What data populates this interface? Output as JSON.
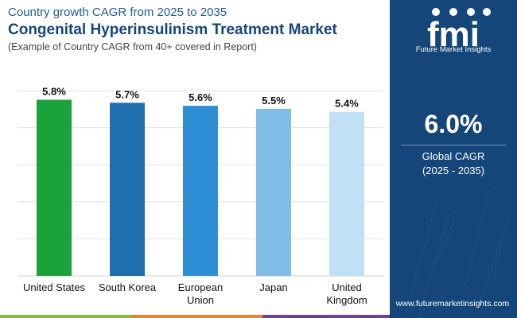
{
  "header": {
    "subtitle_top": "Country growth CAGR from 2025 to 2035",
    "title": "Congenital Hyperinsulinism Treatment Market",
    "note": "(Example of Country CAGR from 40+ covered in Report)"
  },
  "chart_data": {
    "type": "bar",
    "categories": [
      [
        "United States"
      ],
      [
        "South Korea"
      ],
      [
        "European",
        "Union"
      ],
      [
        "Japan"
      ],
      [
        "United",
        "Kingdom"
      ]
    ],
    "values": [
      5.8,
      5.7,
      5.6,
      5.5,
      5.4
    ],
    "value_labels": [
      "5.8%",
      "5.7%",
      "5.6%",
      "5.5%",
      "5.4%"
    ],
    "colors": [
      "#1aa33a",
      "#1f6fb0",
      "#2e8fd6",
      "#7fbde6",
      "#bfe0f5"
    ],
    "ylim": [
      0,
      6.1
    ],
    "grid": true,
    "legend": "none"
  },
  "sidebar": {
    "logo_text": "Future Market Insights",
    "cagr_value": "6.0%",
    "cagr_label": "Global CAGR",
    "cagr_period": "(2025 - 2035)",
    "website": "www.futuremarketinsights.com",
    "background": "#15467a"
  },
  "footer": {
    "stripe_colors": [
      "#7fbf3f",
      "#f0822a",
      "#6d3f96"
    ]
  }
}
